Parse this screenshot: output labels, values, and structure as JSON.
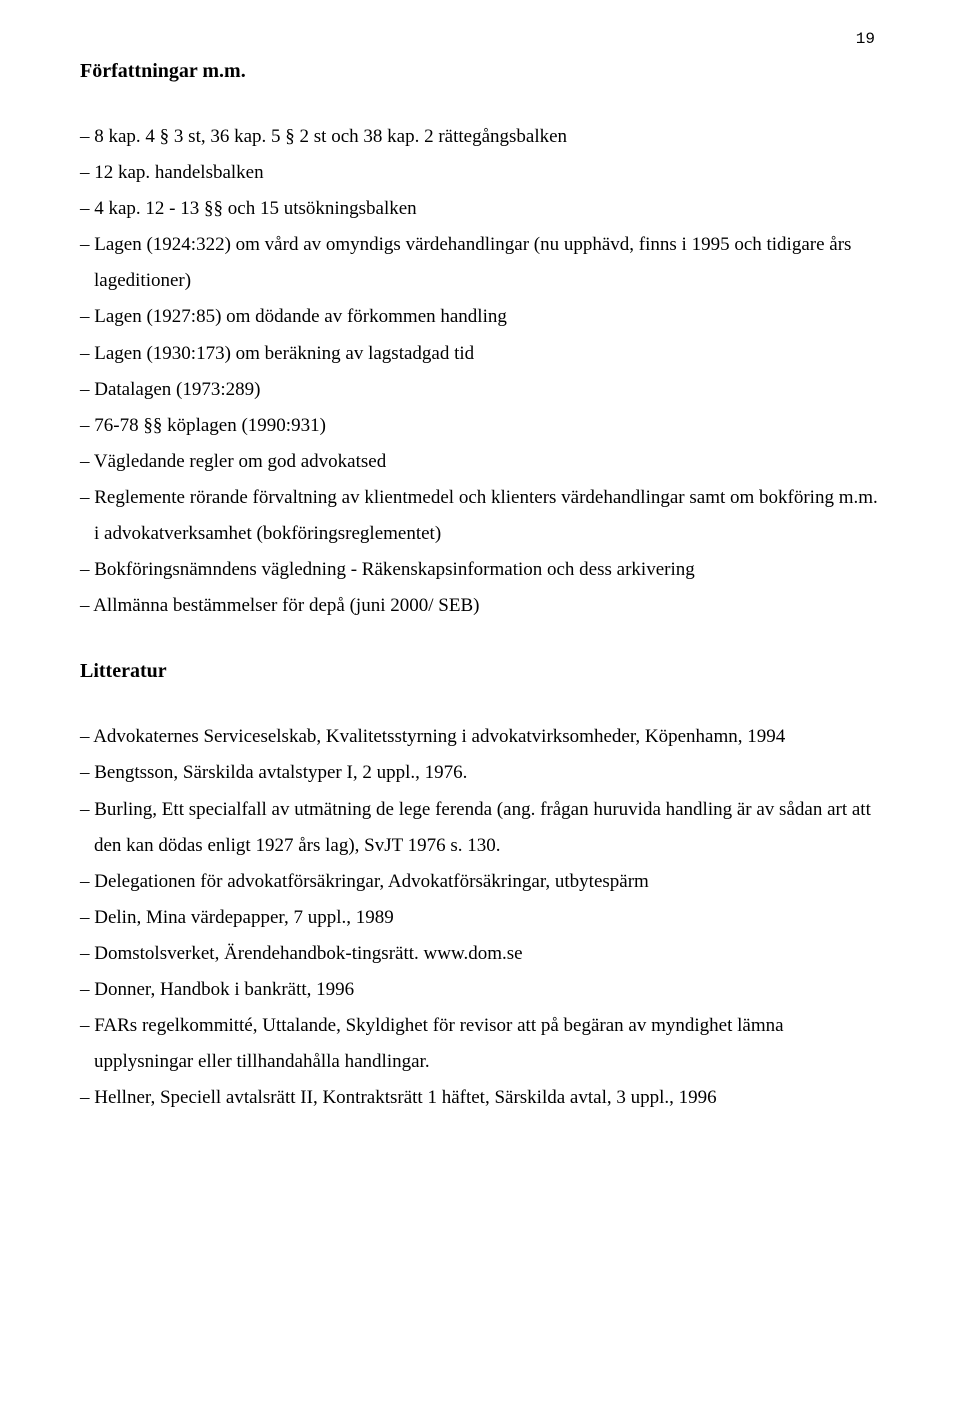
{
  "page": {
    "number": "19"
  },
  "section1": {
    "heading": "Författningar m.m.",
    "items": [
      "– 8 kap. 4 § 3 st, 36 kap. 5 § 2 st och 38 kap. 2 rättegångsbalken",
      "– 12 kap. handelsbalken",
      "– 4 kap. 12 - 13 §§ och 15 utsökningsbalken",
      "– Lagen (1924:322) om vård av omyndigs värdehandlingar (nu upphävd, finns i 1995 och tidigare års lageditioner)",
      "– Lagen (1927:85) om dödande av förkommen handling",
      "– Lagen (1930:173) om beräkning av lagstadgad tid",
      "– Datalagen (1973:289)",
      "– 76-78 §§ köplagen (1990:931)",
      "– Vägledande regler om god advokatsed",
      "– Reglemente rörande förvaltning av klientmedel och klienters värdehandlingar samt om bokföring m.m. i advokatverksamhet (bokföringsreglementet)",
      "– Bokföringsnämndens vägledning - Räkenskapsinformation och dess arkivering",
      "– Allmänna bestämmelser för depå (juni 2000/ SEB)"
    ]
  },
  "section2": {
    "heading": "Litteratur",
    "items": [
      "– Advokaternes Serviceselskab, Kvalitetsstyrning i advokatvirksomheder, Köpenhamn, 1994",
      "– Bengtsson, Särskilda avtalstyper I, 2 uppl., 1976.",
      "– Burling, Ett specialfall av utmätning de lege ferenda (ang. frågan huruvida handling är av sådan art att den kan dödas enligt 1927 års lag), SvJT 1976 s. 130.",
      "– Delegationen för advokatförsäkringar, Advokatförsäkringar, utbytespärm",
      "– Delin, Mina värdepapper, 7 uppl., 1989",
      "– Domstolsverket, Ärendehandbok-tingsrätt. www.dom.se",
      "– Donner, Handbok i bankrätt, 1996",
      "– FARs regelkommitté, Uttalande, Skyldighet för revisor att på begäran av myndighet lämna upplysningar eller tillhandahålla handlingar.",
      "– Hellner, Speciell avtalsrätt II, Kontraktsrätt 1 häftet, Särskilda avtal, 3 uppl., 1996"
    ]
  }
}
